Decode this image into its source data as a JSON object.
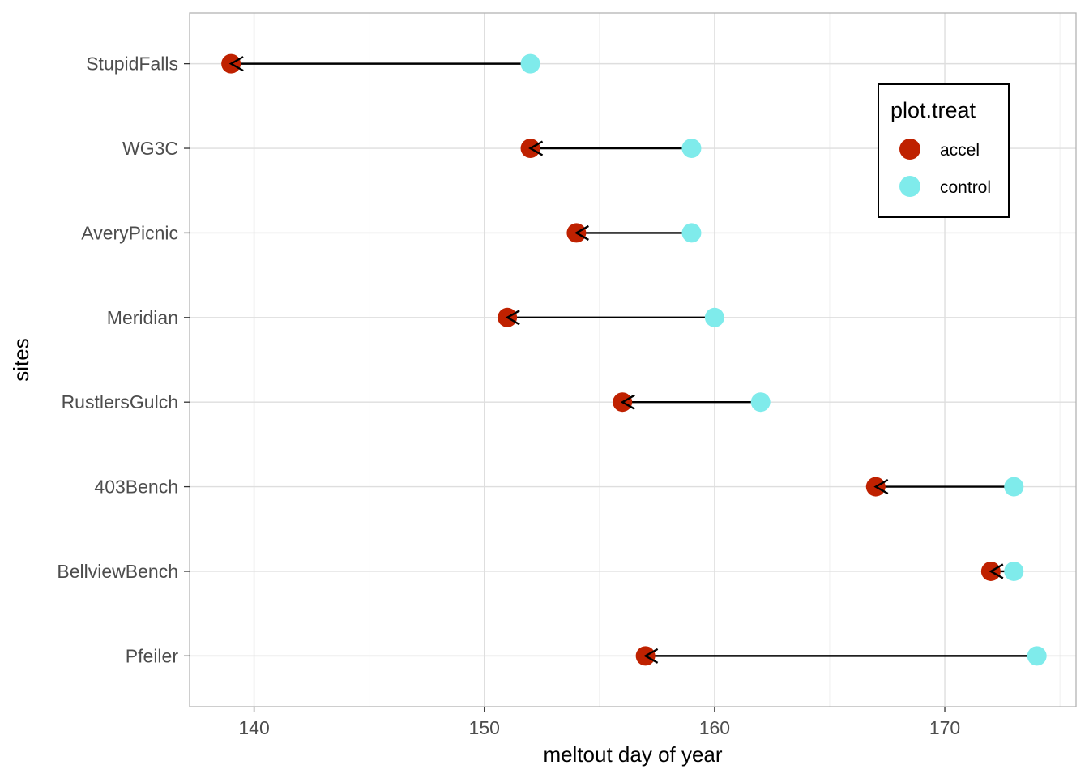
{
  "chart_data": {
    "type": "scatter",
    "subtype": "dumbbell-arrow",
    "title": "",
    "xlabel": "meltout day of year",
    "ylabel": "sites",
    "xlim": [
      137.2,
      175.7
    ],
    "xticks": [
      140,
      150,
      160,
      170
    ],
    "grid": true,
    "legend_position": "top-right",
    "legend_title": "plot.treat",
    "categories": [
      "StupidFalls",
      "WG3C",
      "AveryPicnic",
      "Meridian",
      "RustlersGulch",
      "403Bench",
      "BellviewBench",
      "Pfeiler"
    ],
    "series": [
      {
        "name": "accel",
        "color": "#BF2100",
        "values": [
          139,
          152,
          154,
          151,
          156,
          167,
          172,
          157
        ]
      },
      {
        "name": "control",
        "color": "#7FEBEB",
        "values": [
          152,
          159,
          159,
          160,
          162,
          173,
          173,
          174
        ]
      }
    ],
    "arrows": "from control to accel"
  }
}
